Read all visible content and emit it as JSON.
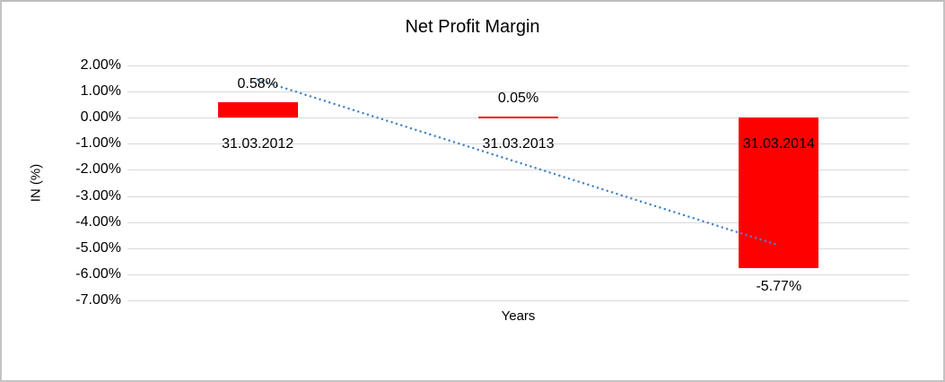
{
  "chart_data": {
    "type": "bar",
    "title": "Net Profit Margin",
    "xlabel": "Years",
    "ylabel": "IN (%)",
    "categories": [
      "31.03.2012",
      "31.03.2013",
      "31.03.2014"
    ],
    "values": [
      0.58,
      0.05,
      -5.77
    ],
    "data_labels": [
      "0.58%",
      "0.05%",
      "-5.77%"
    ],
    "ylim": [
      -7,
      2
    ],
    "ytick_step": 1,
    "yticks": [
      "2.00%",
      "1.00%",
      "0.00%",
      "-1.00%",
      "-2.00%",
      "-3.00%",
      "-4.00%",
      "-5.00%",
      "-6.00%",
      "-7.00%"
    ],
    "grid": true,
    "legend": "none",
    "bar_color": "#ff0000",
    "grid_color": "#d9d9d9",
    "trendline": {
      "type": "linear-dotted",
      "color": "#4585c5",
      "start_value": 1.46,
      "end_value": -4.89
    }
  }
}
